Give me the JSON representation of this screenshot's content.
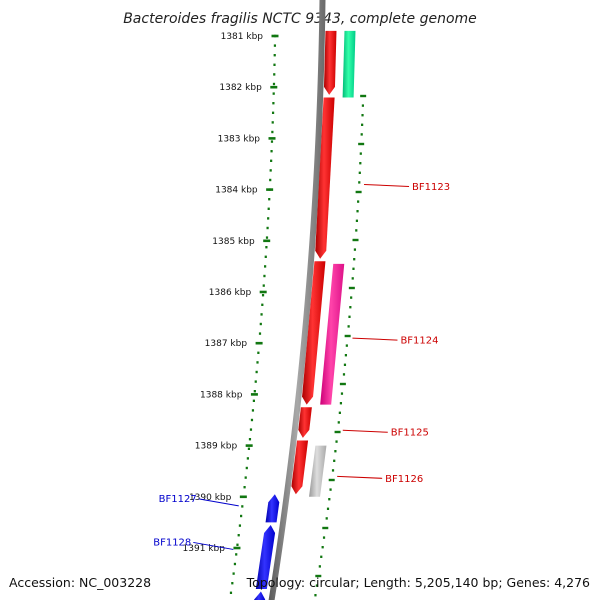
{
  "title": "Bacteroides fragilis NCTC 9343, complete genome",
  "footer": {
    "accession": "Accession: NC_003228",
    "summary": "Topology: circular; Length: 5,205,140 bp; Genes: 4,276"
  },
  "colors": {
    "forward_cds": "#ff0000",
    "reverse_blue": "#0000ff",
    "green_feature": "#00ee99",
    "magenta_feature": "#ff2299",
    "grey_feature": "#bbbbbb",
    "backbone": "#808080",
    "ruler": "#117711",
    "label_red": "#cc0000",
    "label_blue": "#0000cc"
  },
  "chart_data": {
    "type": "genome-map",
    "position_range_kbp": [
      1380.9,
      1392.1
    ],
    "ruler_ticks": [
      {
        "kbp": 1381,
        "label": "1381 kbp"
      },
      {
        "kbp": 1382,
        "label": "1382 kbp"
      },
      {
        "kbp": 1383,
        "label": "1383 kbp"
      },
      {
        "kbp": 1384,
        "label": "1384 kbp"
      },
      {
        "kbp": 1385,
        "label": "1385 kbp"
      },
      {
        "kbp": 1386,
        "label": "1386 kbp"
      },
      {
        "kbp": 1387,
        "label": "1387 kbp"
      },
      {
        "kbp": 1388,
        "label": "1388 kbp"
      },
      {
        "kbp": 1389,
        "label": "1389 kbp"
      },
      {
        "kbp": 1390,
        "label": "1390 kbp"
      },
      {
        "kbp": 1391,
        "label": "1391 kbp"
      }
    ],
    "features": [
      {
        "track": "cds_forward",
        "color": "forward_cds",
        "start_kbp": 1380.9,
        "end_kbp": 1382.15
      },
      {
        "track": "cds_forward",
        "color": "forward_cds",
        "start_kbp": 1382.2,
        "end_kbp": 1385.35
      },
      {
        "track": "cds_forward",
        "color": "forward_cds",
        "start_kbp": 1385.4,
        "end_kbp": 1388.2
      },
      {
        "track": "cds_forward",
        "color": "forward_cds",
        "start_kbp": 1388.25,
        "end_kbp": 1388.85
      },
      {
        "track": "cds_forward",
        "color": "forward_cds",
        "start_kbp": 1388.9,
        "end_kbp": 1389.95
      },
      {
        "track": "rna",
        "color": "green_feature",
        "start_kbp": 1380.9,
        "end_kbp": 1382.2
      },
      {
        "track": "rna",
        "color": "magenta_feature",
        "start_kbp": 1385.45,
        "end_kbp": 1388.2
      },
      {
        "track": "rna",
        "color": "grey_feature",
        "start_kbp": 1389.0,
        "end_kbp": 1390.0
      },
      {
        "track": "cds_reverse",
        "color": "reverse_blue",
        "start_kbp": 1389.95,
        "end_kbp": 1390.5
      },
      {
        "track": "cds_reverse",
        "color": "reverse_blue",
        "start_kbp": 1390.55,
        "end_kbp": 1391.8
      },
      {
        "track": "cds_reverse",
        "color": "reverse_blue",
        "start_kbp": 1391.85,
        "end_kbp": 1392.1
      }
    ],
    "gene_labels": [
      {
        "name": "BF1123",
        "side": "right",
        "color": "label_red",
        "kbp": 1383.9
      },
      {
        "name": "BF1124",
        "side": "right",
        "color": "label_red",
        "kbp": 1386.9
      },
      {
        "name": "BF1125",
        "side": "right",
        "color": "label_red",
        "kbp": 1388.7
      },
      {
        "name": "BF1126",
        "side": "right",
        "color": "label_red",
        "kbp": 1389.6
      },
      {
        "name": "BF1127",
        "side": "left",
        "color": "label_blue",
        "kbp": 1390.1
      },
      {
        "name": "BF1128",
        "side": "left",
        "color": "label_blue",
        "kbp": 1390.95
      }
    ]
  }
}
